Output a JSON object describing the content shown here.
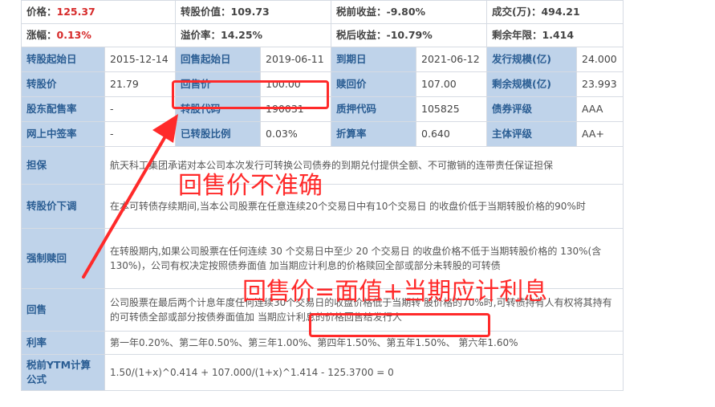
{
  "summary": {
    "price_label": "价格：",
    "price_value": "125.37",
    "conv_value_label": "转股价值：109.73",
    "pretax_yield_label": "税前收益：-9.80%",
    "turnover_label": "成交(万)：494.21",
    "change_label": "涨幅：",
    "change_value": "0.13%",
    "premium_label": "溢价率：14.25%",
    "aftertax_yield_label": "税后收益：-10.79%",
    "remaining_years_label": "剩余年限：1.414"
  },
  "grid": [
    [
      [
        "转股起始日",
        "2015-12-14"
      ],
      [
        "回售起始日",
        "2019-06-11"
      ],
      [
        "到期日",
        "2021-06-12"
      ],
      [
        "发行规模(亿)",
        "24.000"
      ]
    ],
    [
      [
        "转股价",
        "21.79"
      ],
      [
        "回售价",
        "100.00"
      ],
      [
        "赎回价",
        "107.00"
      ],
      [
        "剩余规模(亿)",
        "23.993"
      ]
    ],
    [
      [
        "股东配售率",
        "-"
      ],
      [
        "转股代码",
        "190031"
      ],
      [
        "质押代码",
        "105825"
      ],
      [
        "债券评级",
        "AAA"
      ]
    ],
    [
      [
        "网上中签率",
        "-"
      ],
      [
        "已转股比例",
        "0.03%"
      ],
      [
        "折算率",
        "0.640"
      ],
      [
        "主体评级",
        "AA+"
      ]
    ]
  ],
  "details": [
    {
      "label": "担保",
      "text": "航天科工集团承诺对本公司本次发行可转换公司债券的到期兑付提供全额、不可撤销的连带责任保证担保"
    },
    {
      "label": "转股价下调",
      "text": "在本可转债存续期间,当本公司股票在任意连续20个交易日中有10个交易日 的收盘价低于当期转股价格的90%时"
    },
    {
      "label": "强制赎回",
      "text": "在转股期内,如果公司股票在任何连续 30 个交易日中至少 20 个交易日 的收盘价格不低于当期转股价格的 130%(含 130%)，公司有权决定按照债券面值 加当期应计利息的价格赎回全部或部分未转股的可转债"
    },
    {
      "label": "回售",
      "text": "公司股票在最后两个计息年度任何连续30个交易日的收盘价格低于当期转 股价格的70%时,可转债持有人有权将其持有的可转债全部或部分按债券面值加 当期应计利息的价格回售给发行人"
    },
    {
      "label": "利率",
      "text": "第一年0.20%、第二年0.50%、第三年1.00%、第四年1.50%、第五年1.50%、 第六年1.60%"
    },
    {
      "label": "税前YTM计算公式",
      "text": "1.50/(1+x)^0.414 + 107.000/(1+x)^1.414 - 125.3700 = 0"
    }
  ],
  "annotations": {
    "inaccurate": "回售价不准确",
    "formula": "回售价=面值+当期应计利息"
  },
  "colors": {
    "highlight": "#ff2a2a",
    "label_bg": "#bfd3ea",
    "label_text": "#2a5d93",
    "red_value": "#d62a2a"
  }
}
